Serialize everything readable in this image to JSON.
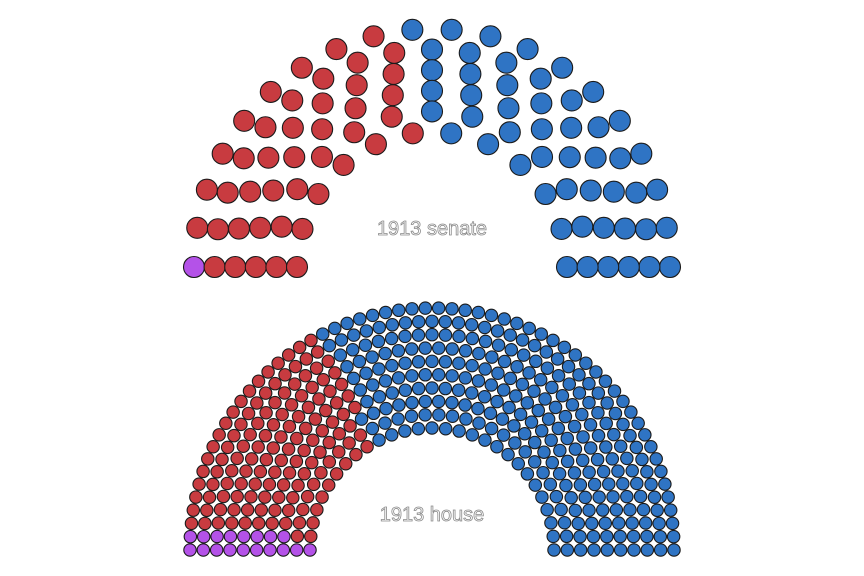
{
  "chart_data": [
    {
      "type": "parliament",
      "label": "1913 senate",
      "total_seats": 96,
      "rows": 6,
      "series": [
        {
          "name": "",
          "seats": 1,
          "color": "#b452e8"
        },
        {
          "name": "",
          "seats": 44,
          "color": "#c83b40"
        },
        {
          "name": "",
          "seats": 51,
          "color": "#2f74c4"
        }
      ]
    },
    {
      "type": "parliament",
      "label": "1913 house",
      "total_seats": 435,
      "rows": 10,
      "series": [
        {
          "name": "",
          "seats": 18,
          "color": "#b452e8"
        },
        {
          "name": "",
          "seats": 134,
          "color": "#c83b40"
        },
        {
          "name": "",
          "seats": 283,
          "color": "#2f74c4"
        }
      ]
    }
  ]
}
